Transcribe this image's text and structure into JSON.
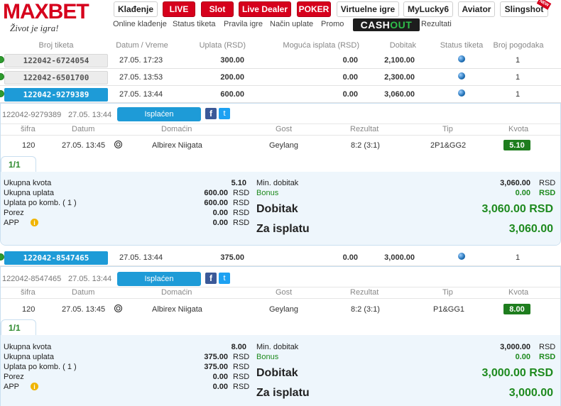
{
  "brand": {
    "name": "MAXBET",
    "slogan": "Život je igra!"
  },
  "nav": {
    "kladjenje": "Klađenje",
    "live": "LIVE",
    "slot": "Slot",
    "live_dealer": "Live Dealer",
    "poker": "POKER",
    "virtuelne": "Virtuelne igre",
    "mylucky": "MyLucky6",
    "aviator": "Aviator",
    "slingshot": "Slingshot",
    "new_badge": "NEW"
  },
  "subnav": {
    "online": "Online klađenje",
    "status": "Status tiketa",
    "pravila": "Pravila igre",
    "nacin": "Način uplate",
    "promo": "Promo",
    "cash": "CASH",
    "out": "OUT",
    "rezultati": "Rezultati"
  },
  "colors": {
    "brand_red": "#d6001c",
    "accent_blue": "#1e9bd7",
    "win_green": "#1e8a1e"
  },
  "table": {
    "headers": {
      "broj": "Broj tiketa",
      "datum": "Datum / Vreme",
      "uplata": "Uplata (RSD)",
      "moguca": "Moguća isplata (RSD)",
      "dobitak": "Dobitak",
      "status": "Status tiketa",
      "pogodaka": "Broj pogodaka"
    },
    "rows": [
      {
        "ticket": "122042-6724054",
        "date": "27.05. 17:23",
        "uplata": "300.00",
        "moguca": "0.00",
        "dobitak": "2,100.00",
        "pogodaka": "1"
      },
      {
        "ticket": "122042-6501700",
        "date": "27.05. 13:53",
        "uplata": "200.00",
        "moguca": "0.00",
        "dobitak": "2,300.00",
        "pogodaka": "1"
      },
      {
        "ticket": "122042-9279389",
        "date": "27.05. 13:44",
        "uplata": "600.00",
        "moguca": "0.00",
        "dobitak": "3,060.00",
        "pogodaka": "1"
      },
      {
        "ticket": "122042-8547465",
        "date": "27.05. 13:44",
        "uplata": "375.00",
        "moguca": "0.00",
        "dobitak": "3,000.00",
        "pogodaka": "1"
      }
    ]
  },
  "details": [
    {
      "ticket": "122042-9279389",
      "date": "27.05. 13:44",
      "status_btn": "Isplaćen",
      "game_headers": {
        "sifra": "šifra",
        "datum": "Datum",
        "domacin": "Domaćin",
        "gost": "Gost",
        "rezultat": "Rezultat",
        "tip": "Tip",
        "kvota": "Kvota"
      },
      "game": {
        "sifra": "120",
        "datum": "27.05. 13:45",
        "domacin": "Albirex Niigata",
        "gost": "Geylang",
        "rezultat": "8:2 (3:1)",
        "tip": "2P1&GG2",
        "kvota": "5.10"
      },
      "tab": "1/1",
      "summary": {
        "ukupna_kvota_l": "Ukupna kvota",
        "ukupna_kvota": "5.10",
        "ukupna_uplata_l": "Ukupna uplata",
        "ukupna_uplata": "600.00",
        "uplata_komb_l": "Uplata po komb. ( 1 )",
        "uplata_komb": "600.00",
        "porez_l": "Porez",
        "porez": "0.00",
        "app_l": "APP",
        "app": "0.00",
        "rsd": "RSD",
        "min_dobitak_l": "Min. dobitak",
        "min_dobitak": "3,060.00",
        "bonus_l": "Bonus",
        "bonus": "0.00",
        "dobitak_l": "Dobitak",
        "dobitak": "3,060.00 RSD",
        "za_isplatu_l": "Za isplatu",
        "za_isplatu": "3,060.00"
      }
    },
    {
      "ticket": "122042-8547465",
      "date": "27.05. 13:44",
      "status_btn": "Isplaćen",
      "game_headers": {
        "sifra": "šifra",
        "datum": "Datum",
        "domacin": "Domaćin",
        "gost": "Gost",
        "rezultat": "Rezultat",
        "tip": "Tip",
        "kvota": "Kvota"
      },
      "game": {
        "sifra": "120",
        "datum": "27.05. 13:45",
        "domacin": "Albirex Niigata",
        "gost": "Geylang",
        "rezultat": "8:2 (3:1)",
        "tip": "P1&GG1",
        "kvota": "8.00"
      },
      "tab": "1/1",
      "summary": {
        "ukupna_kvota_l": "Ukupna kvota",
        "ukupna_kvota": "8.00",
        "ukupna_uplata_l": "Ukupna uplata",
        "ukupna_uplata": "375.00",
        "uplata_komb_l": "Uplata po komb. ( 1 )",
        "uplata_komb": "375.00",
        "porez_l": "Porez",
        "porez": "0.00",
        "app_l": "APP",
        "app": "0.00",
        "rsd": "RSD",
        "min_dobitak_l": "Min. dobitak",
        "min_dobitak": "3,000.00",
        "bonus_l": "Bonus",
        "bonus": "0.00",
        "dobitak_l": "Dobitak",
        "dobitak": "3,000.00 RSD",
        "za_isplatu_l": "Za isplatu",
        "za_isplatu": "3,000.00"
      }
    }
  ]
}
